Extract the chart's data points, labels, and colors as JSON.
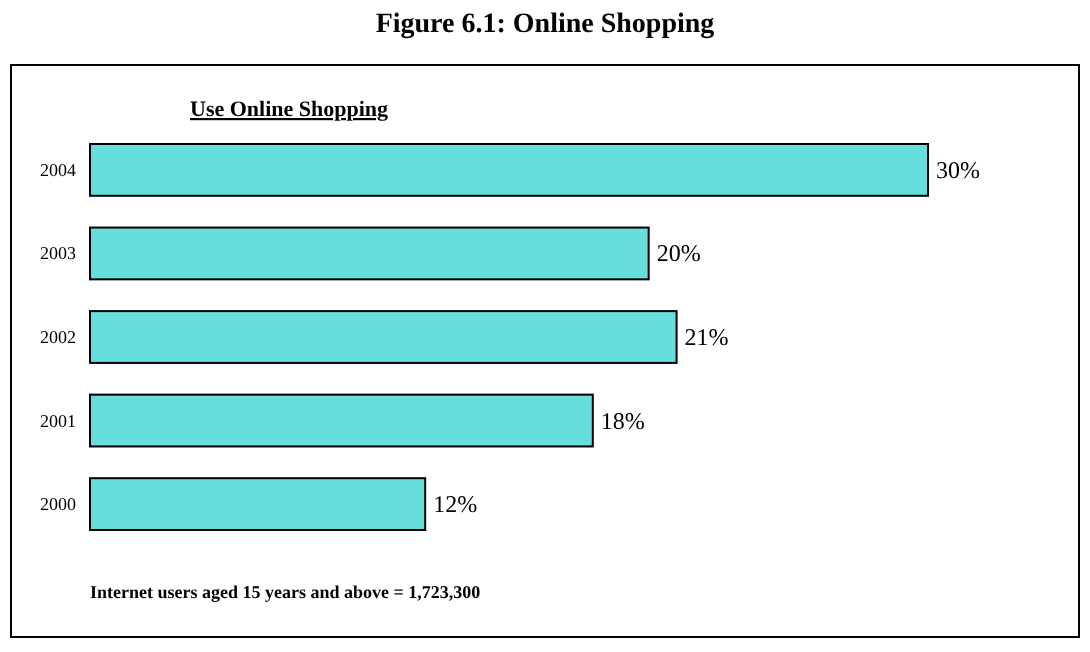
{
  "chart_data": {
    "type": "bar",
    "orientation": "horizontal",
    "title": "Figure 6.1: Online Shopping",
    "subtitle": "Use Online Shopping",
    "categories": [
      "2004",
      "2003",
      "2002",
      "2001",
      "2000"
    ],
    "values": [
      30,
      20,
      21,
      18,
      12
    ],
    "value_labels": [
      "30%",
      "20%",
      "21%",
      "18%",
      "12%"
    ],
    "color": "#66dede",
    "annotations": [
      "Internet users aged 15 years and above = 1,723,300"
    ]
  }
}
